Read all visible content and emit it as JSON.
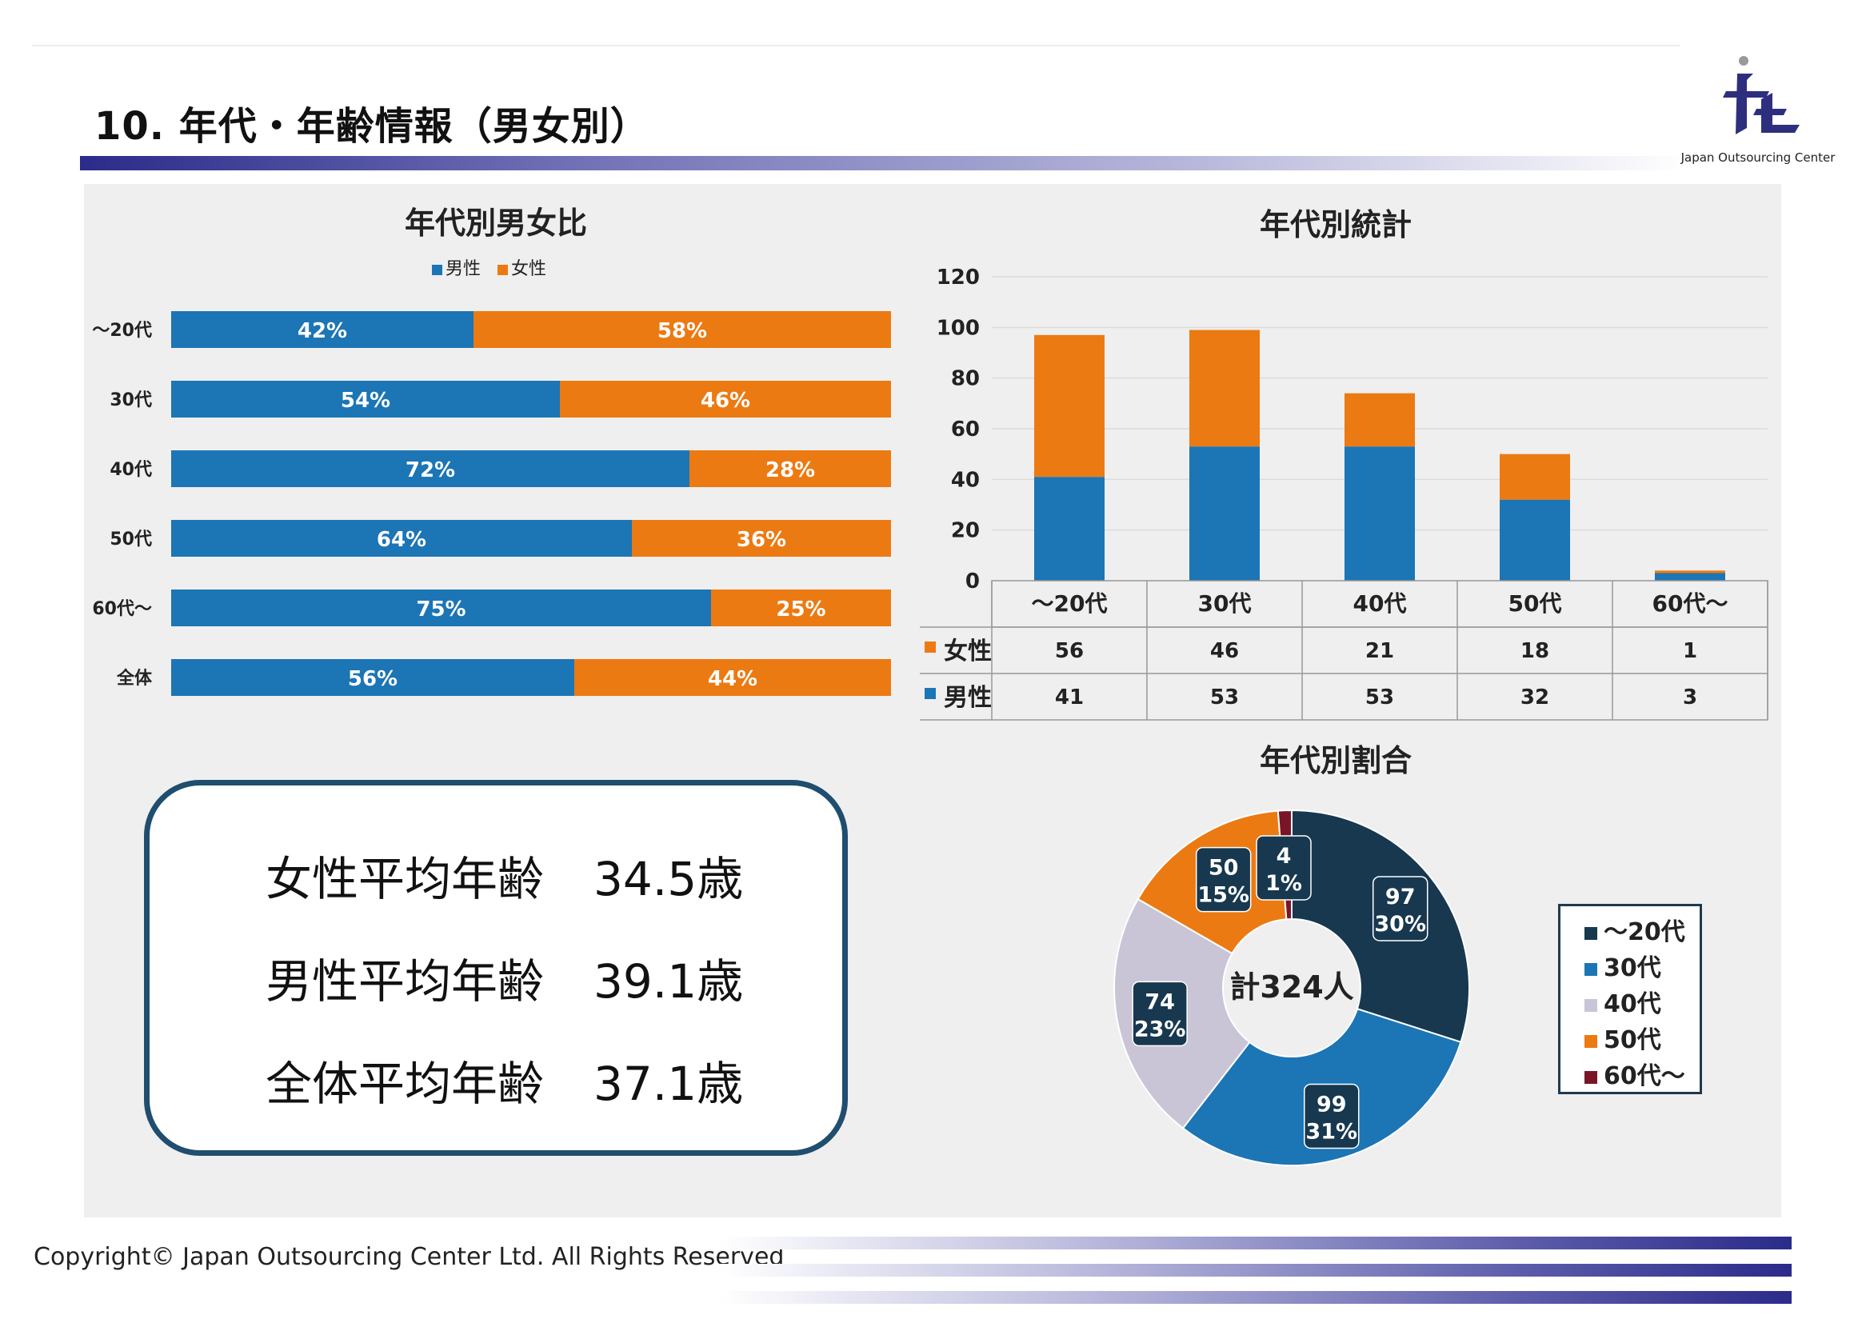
{
  "header": {
    "title": "10.  年代・年齢情報（男女別）",
    "logo_text": "Japan Outsourcing Center"
  },
  "colors": {
    "male": "#1c75b5",
    "female": "#ec7a12",
    "age_u20": "#17384f",
    "age_30": "#1c75b5",
    "age_40": "#c9c5d7",
    "age_50": "#ec7a12",
    "age_60": "#7a1528"
  },
  "averages": [
    {
      "label": "女性平均年齢",
      "value": "34.5歳"
    },
    {
      "label": "男性平均年齢",
      "value": "39.1歳"
    },
    {
      "label": "全体平均年齢",
      "value": "37.1歳"
    }
  ],
  "footer": {
    "copyright": "Copyright© Japan Outsourcing Center Ltd. All Rights Reserved"
  },
  "chart_data": [
    {
      "type": "bar",
      "orientation": "horizontal",
      "stacked": "percent",
      "title": "年代別男女比",
      "categories": [
        "～20代",
        "30代",
        "40代",
        "50代",
        "60代～",
        "全体"
      ],
      "series": [
        {
          "name": "男性",
          "values": [
            42,
            54,
            72,
            64,
            75,
            56
          ],
          "labels": [
            "42%",
            "54%",
            "72%",
            "64%",
            "75%",
            "56%"
          ]
        },
        {
          "name": "女性",
          "values": [
            58,
            46,
            28,
            36,
            25,
            44
          ],
          "labels": [
            "58%",
            "46%",
            "28%",
            "36%",
            "25%",
            "44%"
          ]
        }
      ],
      "legend": "top"
    },
    {
      "type": "bar",
      "stacked": true,
      "title": "年代別統計",
      "categories": [
        "～20代",
        "30代",
        "40代",
        "50代",
        "60代～"
      ],
      "series": [
        {
          "name": "男性",
          "values": [
            41,
            53,
            53,
            32,
            3
          ]
        },
        {
          "name": "女性",
          "values": [
            56,
            46,
            21,
            18,
            1
          ]
        }
      ],
      "ylim": [
        0,
        120
      ],
      "yticks": [
        "0",
        "20",
        "40",
        "60",
        "80",
        "100",
        "120"
      ],
      "grid": true,
      "data_table": true
    },
    {
      "type": "pie",
      "donut": true,
      "title": "年代別割合",
      "center_label": "計324人",
      "categories": [
        "～20代",
        "30代",
        "40代",
        "50代",
        "60代～"
      ],
      "values": [
        97,
        99,
        74,
        50,
        4
      ],
      "percent_labels": [
        "30%",
        "31%",
        "23%",
        "15%",
        "1%"
      ],
      "legend": "right"
    }
  ]
}
